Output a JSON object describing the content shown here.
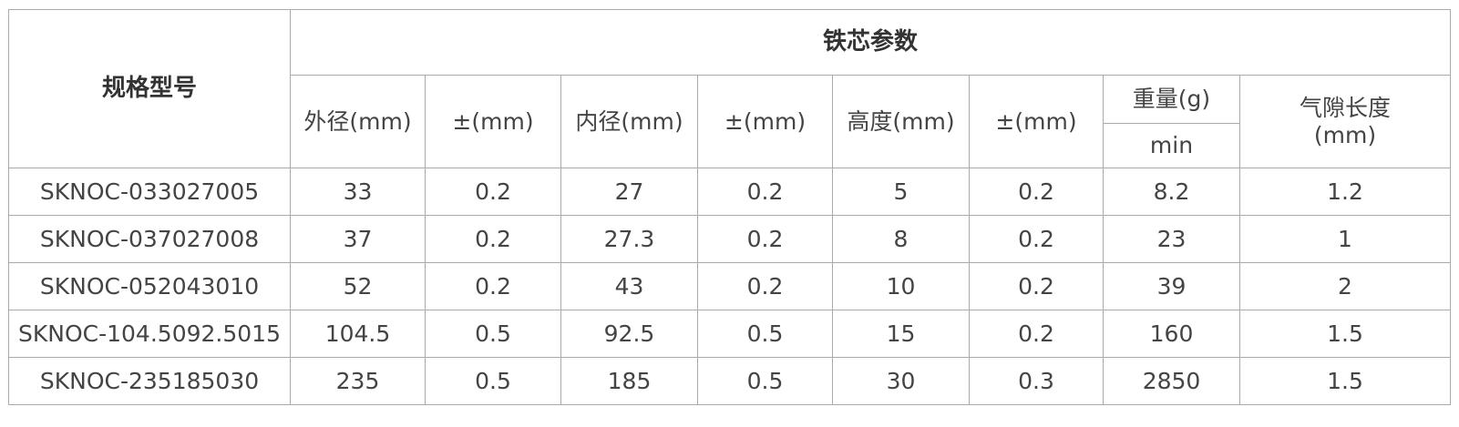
{
  "header": {
    "model": "规格型号",
    "group": "铁芯参数",
    "columns": [
      "外径(mm)",
      "±(mm)",
      "内径(mm)",
      "±(mm)",
      "高度(mm)",
      "±(mm)"
    ],
    "weight": "重量(g)",
    "weight_sub": "min",
    "gap_line1": "气隙长度",
    "gap_line2": "(mm)"
  },
  "rows": [
    [
      "SKNOC-033027005",
      "33",
      "0.2",
      "27",
      "0.2",
      "5",
      "0.2",
      "8.2",
      "1.2"
    ],
    [
      "SKNOC-037027008",
      "37",
      "0.2",
      "27.3",
      "0.2",
      "8",
      "0.2",
      "23",
      "1"
    ],
    [
      "SKNOC-052043010",
      "52",
      "0.2",
      "43",
      "0.2",
      "10",
      "0.2",
      "39",
      "2"
    ],
    [
      "SKNOC-104.5092.5015",
      "104.5",
      "0.5",
      "92.5",
      "0.5",
      "15",
      "0.2",
      "160",
      "1.5"
    ],
    [
      "SKNOC-235185030",
      "235",
      "0.5",
      "185",
      "0.5",
      "30",
      "0.3",
      "2850",
      "1.5"
    ]
  ]
}
